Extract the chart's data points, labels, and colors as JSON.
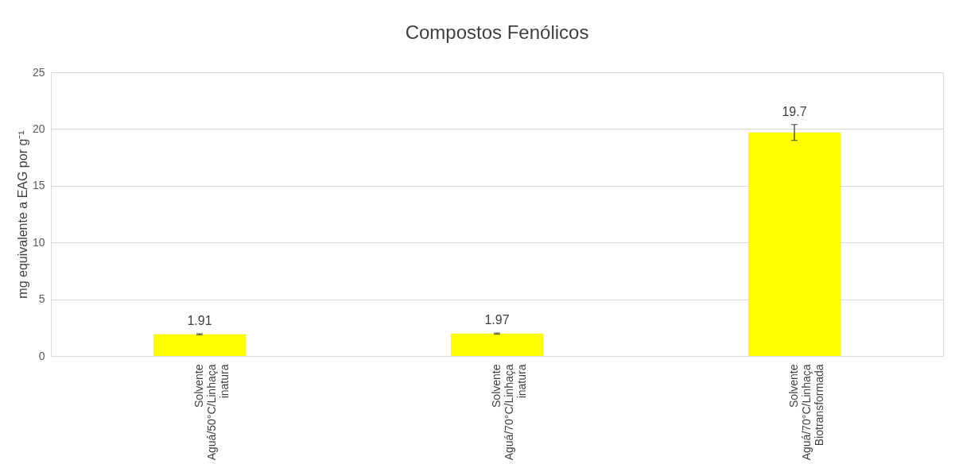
{
  "chart_data": {
    "type": "bar",
    "title": "Compostos Fenólicos",
    "ylabel": "mg equivalente a EAG por g⁻¹",
    "categories": [
      "Solvente\nAguá/50°C/Linhaça\ninatura",
      "Solvente\nAguá/70°C/Linhaça\ninatura",
      "Solvente\nAguá/70°C/Linhaça\nBiotransformada"
    ],
    "values": [
      1.91,
      1.97,
      19.7
    ],
    "color": "#ffff00",
    "errors": [
      0.05,
      0.05,
      0.7
    ],
    "data_labels": true,
    "ylim": [
      0,
      25
    ],
    "yticks": [
      0,
      5,
      10,
      15,
      20,
      25
    ],
    "grid": "y"
  }
}
